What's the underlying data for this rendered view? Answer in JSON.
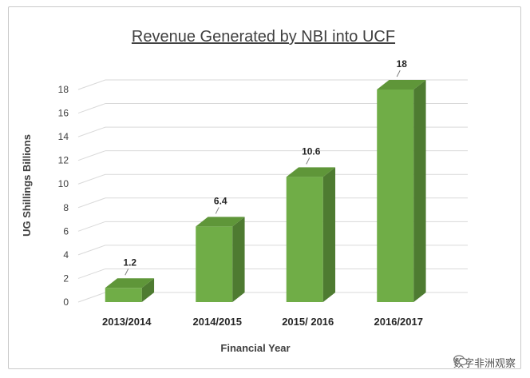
{
  "chart_data": {
    "type": "bar",
    "title": "Revenue Generated by NBI into UCF",
    "xlabel": "Financial Year",
    "ylabel": "UG Shillings Billions",
    "categories": [
      "2013/2014",
      "2014/2015",
      "2015/ 2016",
      "2016/2017"
    ],
    "values": [
      1.2,
      6.4,
      10.6,
      18
    ],
    "value_labels": [
      "1.2",
      "6.4",
      "10.6",
      "18"
    ],
    "ylim": [
      0,
      18
    ],
    "yticks": [
      0,
      2,
      4,
      6,
      8,
      10,
      12,
      14,
      16,
      18
    ],
    "grid": true,
    "legend": "none",
    "style": "3d-column",
    "colors": {
      "front": "#70ad47",
      "side": "#4e7b31",
      "top": "#5f9639"
    }
  },
  "watermark": {
    "text": "数字非洲观察",
    "icon": "wechat-icon"
  }
}
